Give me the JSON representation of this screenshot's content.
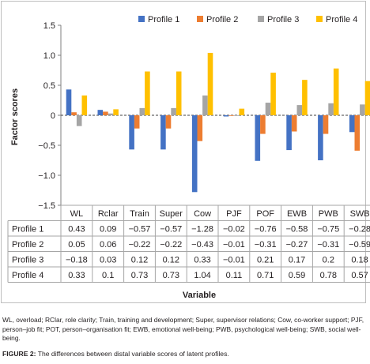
{
  "chart_data": {
    "type": "bar",
    "categories": [
      "WL",
      "Rclar",
      "Train",
      "Super",
      "Cow",
      "PJF",
      "POF",
      "EWB",
      "PWB",
      "SWB"
    ],
    "series": [
      {
        "name": "Profile 1",
        "values": [
          0.43,
          0.09,
          -0.57,
          -0.57,
          -1.28,
          -0.02,
          -0.76,
          -0.58,
          -0.75,
          -0.28
        ],
        "color": "#4472c4"
      },
      {
        "name": "Profile 2",
        "values": [
          0.05,
          0.06,
          -0.22,
          -0.22,
          -0.43,
          -0.01,
          -0.31,
          -0.27,
          -0.31,
          -0.59
        ],
        "color": "#ed7d31"
      },
      {
        "name": "Profile 3",
        "values": [
          -0.18,
          0.03,
          0.12,
          0.12,
          0.33,
          -0.01,
          0.21,
          0.17,
          0.2,
          0.18
        ],
        "color": "#a5a5a5"
      },
      {
        "name": "Profile 4",
        "values": [
          0.33,
          0.1,
          0.73,
          0.73,
          1.04,
          0.11,
          0.71,
          0.59,
          0.78,
          0.57
        ],
        "color": "#ffc000"
      }
    ],
    "xlabel": "Variable",
    "ylabel": "Factor scores",
    "ylim": [
      -1.5,
      1.5
    ],
    "yticks": [
      "1.5",
      "1.0",
      "0.5",
      "0",
      "−0.5",
      "−1.0",
      "−1.5"
    ],
    "grid": false,
    "legend": "top",
    "data_table": true
  },
  "caption": "WL, overload; RClar, role clarity; Train, training and development; Super, supervisor relations; Cow, co-worker support; PJF, person–job fit; POT, person–organisation fit; EWB, emotional well-being; PWB, psychological well-being; SWB, social well-being.",
  "figure_label": "FIGURE 2:",
  "figure_title": "The differences between distal variable scores of latent profiles."
}
